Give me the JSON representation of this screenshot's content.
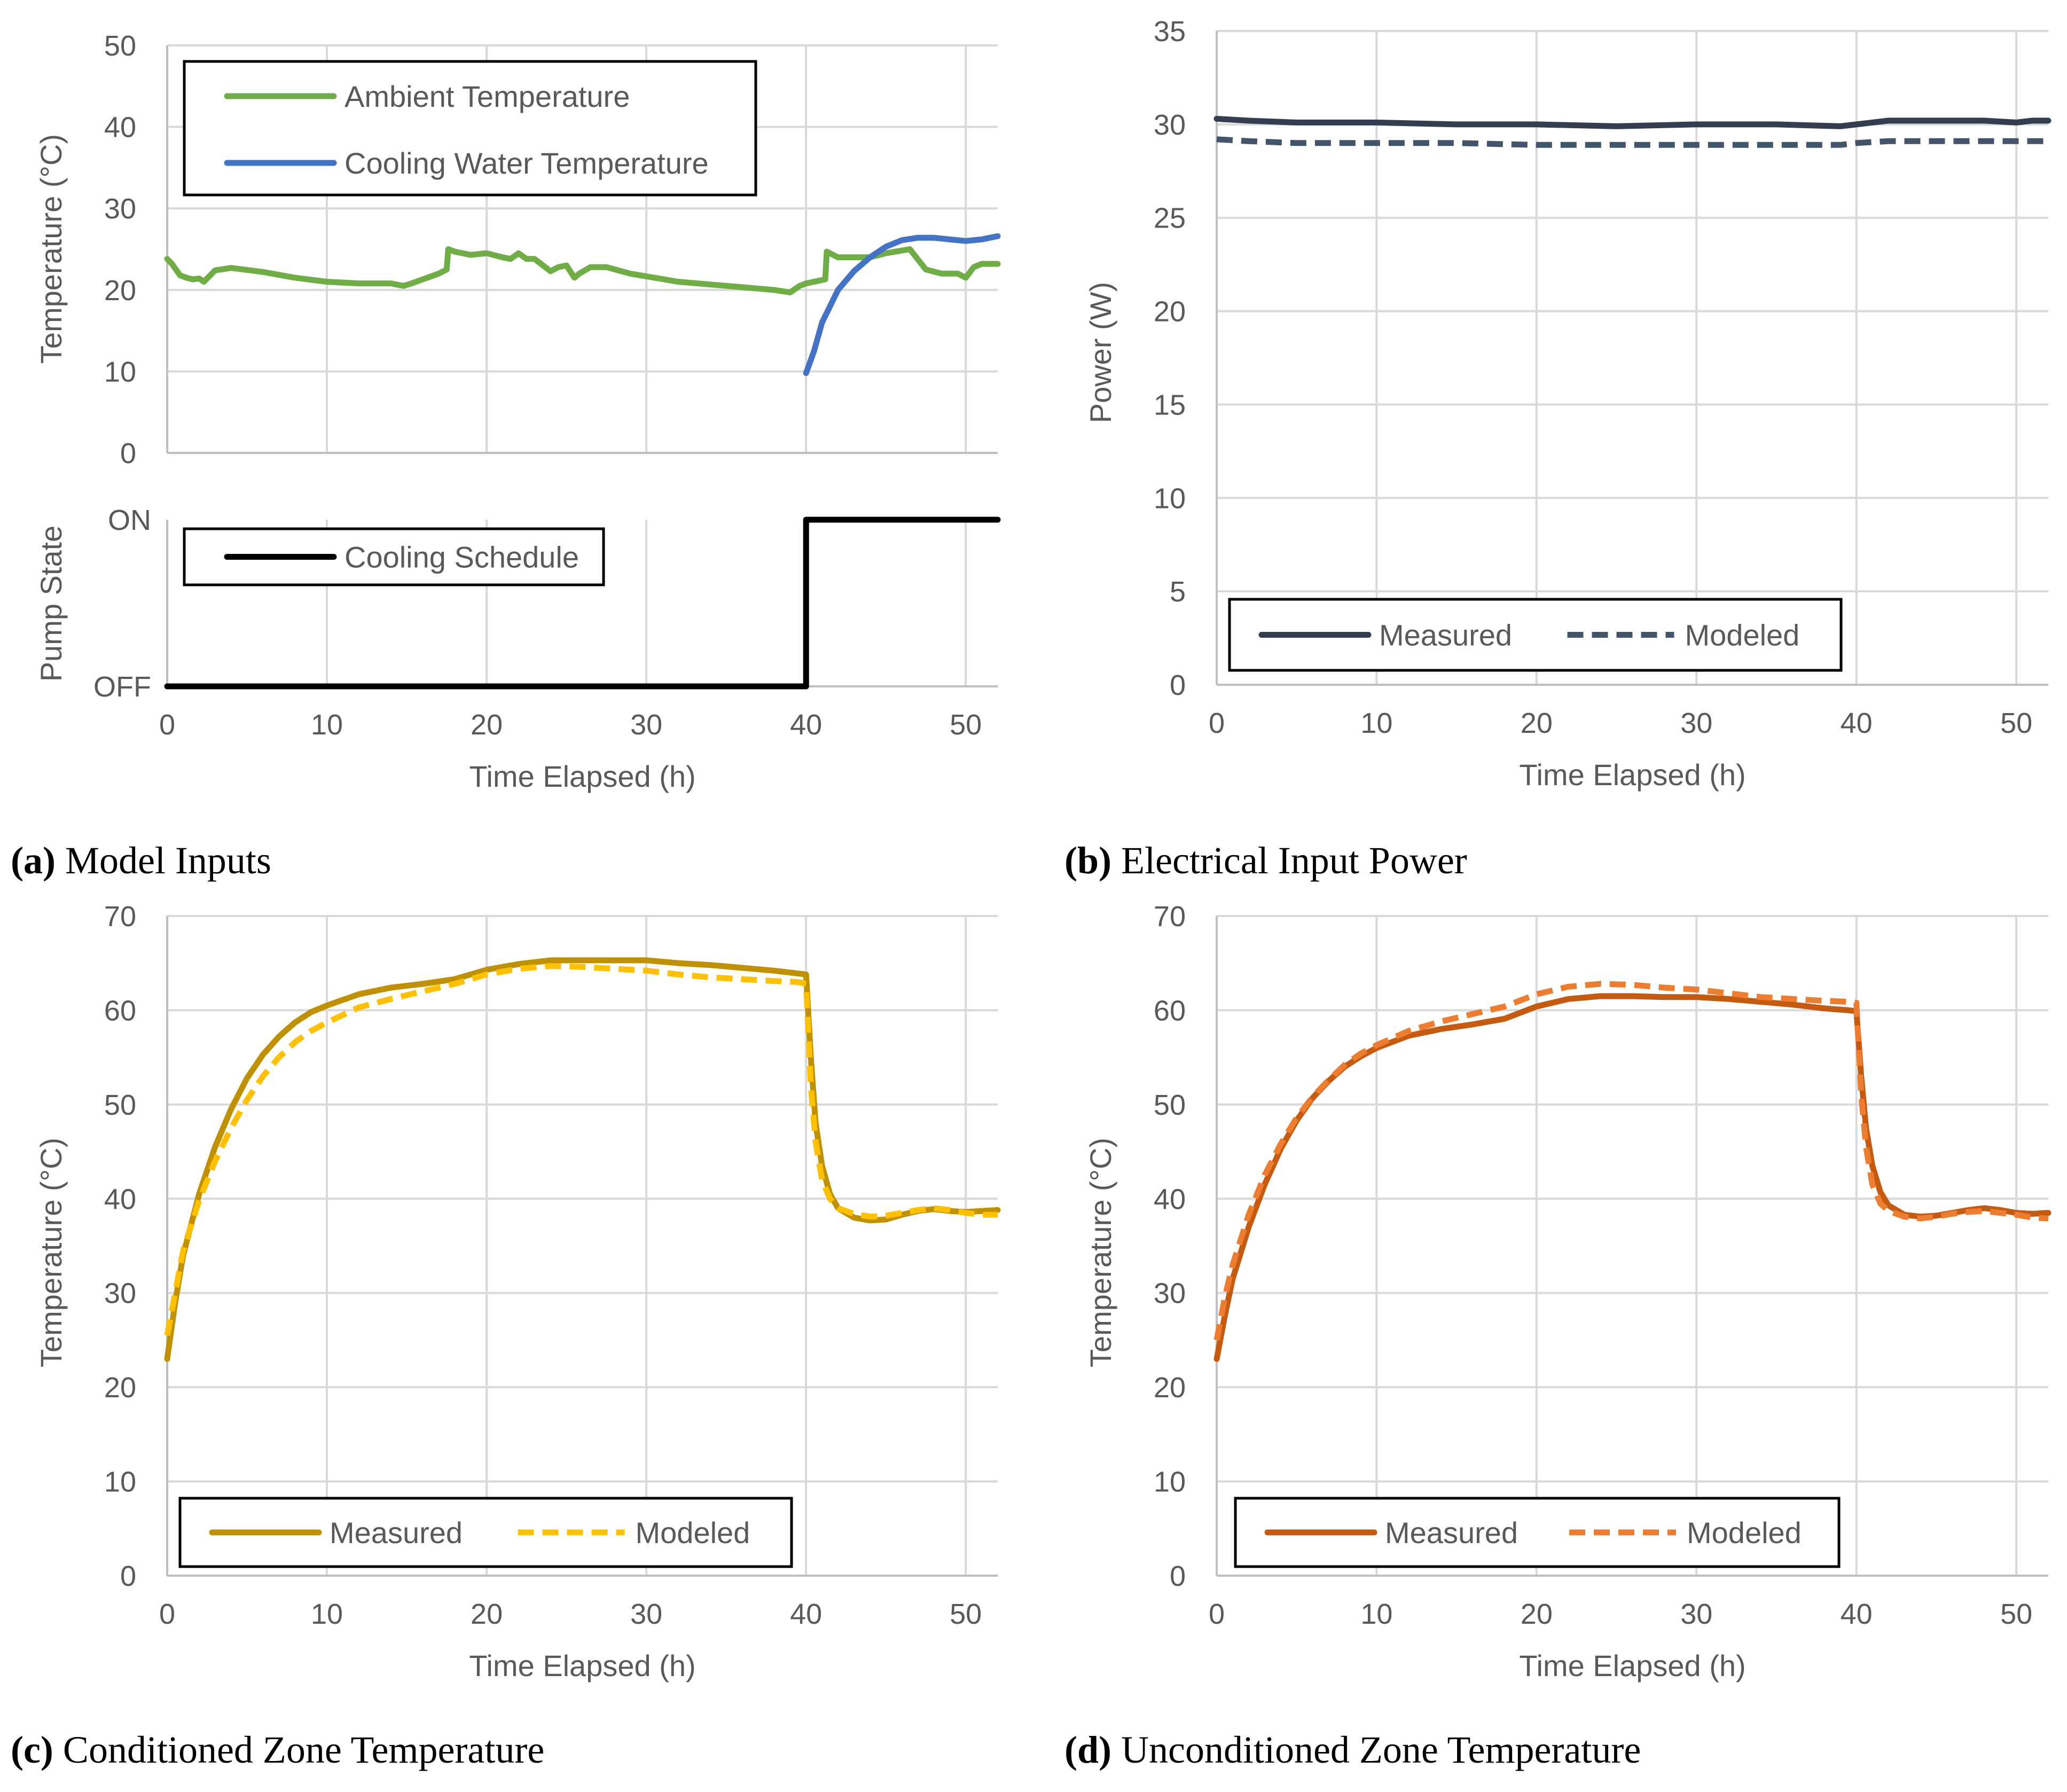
{
  "figure": {
    "captions": [
      {
        "letter": "(a)",
        "text": " Model Inputs"
      },
      {
        "letter": "(b)",
        "text": " Electrical Input Power"
      },
      {
        "letter": "(c)",
        "text": " Conditioned Zone Temperature"
      },
      {
        "letter": "(d)",
        "text": " Unconditioned Zone Temperature"
      }
    ]
  },
  "chart_data": [
    {
      "id": "a-top",
      "type": "line",
      "xlabel": "",
      "ylabel": "Temperature (°C)",
      "xlim": [
        0,
        52
      ],
      "ylim": [
        0,
        50
      ],
      "xticks": [
        0,
        10,
        20,
        30,
        40,
        50
      ],
      "yticks": [
        0,
        10,
        20,
        30,
        40,
        50
      ],
      "legend": "top-left",
      "series": [
        {
          "name": "Ambient Temperature",
          "color": "#70ad47",
          "dash": "solid",
          "x": [
            0,
            0.3,
            0.8,
            1.2,
            1.6,
            2.0,
            2.3,
            3.0,
            4,
            6,
            8,
            10,
            12,
            14,
            14.8,
            15.3,
            16,
            17,
            17.5,
            17.6,
            18,
            19,
            20,
            21,
            21.5,
            22,
            22.5,
            23,
            24,
            24.5,
            25,
            25.5,
            25.8,
            26.5,
            27.5,
            29,
            32,
            35,
            38,
            39,
            39.6,
            40,
            40.5,
            41.2,
            41.3,
            42,
            44,
            45,
            46.5,
            47.5,
            48.5,
            49.5,
            50,
            50.5,
            51,
            52
          ],
          "y": [
            23.8,
            23.2,
            21.8,
            21.5,
            21.3,
            21.4,
            21.0,
            22.4,
            22.7,
            22.2,
            21.5,
            21.0,
            20.8,
            20.8,
            20.5,
            20.8,
            21.3,
            22.0,
            22.5,
            25.0,
            24.7,
            24.3,
            24.5,
            24.0,
            23.8,
            24.5,
            23.8,
            23.8,
            22.3,
            22.8,
            23.0,
            21.5,
            22.0,
            22.8,
            22.8,
            22.0,
            21.0,
            20.5,
            20.0,
            19.7,
            20.5,
            20.8,
            21.0,
            21.3,
            24.7,
            24.0,
            24.0,
            24.5,
            25.0,
            22.5,
            22.0,
            22.0,
            21.5,
            22.8,
            23.2,
            23.2
          ]
        },
        {
          "name": "Cooling Water Temperature",
          "color": "#4472c4",
          "dash": "solid",
          "x": [
            40,
            40.5,
            41,
            42,
            43,
            44,
            45,
            46,
            47,
            48,
            49,
            50,
            51,
            52
          ],
          "y": [
            9.8,
            12.5,
            16.0,
            20.0,
            22.3,
            24.0,
            25.3,
            26.1,
            26.4,
            26.4,
            26.2,
            26.0,
            26.2,
            26.6
          ]
        }
      ]
    },
    {
      "id": "a-bottom",
      "type": "line",
      "xlabel": "Time Elapsed (h)",
      "ylabel": "Pump State",
      "xlim": [
        0,
        52
      ],
      "ylim": [
        0,
        1
      ],
      "xticks": [
        0,
        10,
        20,
        30,
        40,
        50
      ],
      "ytick_labels": [
        "OFF",
        "ON"
      ],
      "legend": "top-left",
      "series": [
        {
          "name": "Cooling Schedule",
          "color": "#000000",
          "dash": "solid",
          "x": [
            0,
            40,
            40,
            52
          ],
          "y": [
            0,
            0,
            1,
            1
          ]
        }
      ]
    },
    {
      "id": "b",
      "type": "line",
      "xlabel": "Time Elapsed (h)",
      "ylabel": "Power (W)",
      "xlim": [
        0,
        52
      ],
      "ylim": [
        0,
        35
      ],
      "xticks": [
        0,
        10,
        20,
        30,
        40,
        50
      ],
      "yticks": [
        0,
        5,
        10,
        15,
        20,
        25,
        30,
        35
      ],
      "legend": "bottom-left",
      "series": [
        {
          "name": "Measured",
          "color": "#333f50",
          "dash": "solid",
          "x": [
            0,
            2,
            5,
            10,
            15,
            20,
            25,
            30,
            35,
            39,
            40,
            42,
            45,
            48,
            50,
            51,
            52
          ],
          "y": [
            30.3,
            30.2,
            30.1,
            30.1,
            30.0,
            30.0,
            29.9,
            30.0,
            30.0,
            29.9,
            30.0,
            30.2,
            30.2,
            30.2,
            30.1,
            30.2,
            30.2
          ]
        },
        {
          "name": "Modeled",
          "color": "#44546a",
          "dash": "dashed",
          "x": [
            0,
            2,
            5,
            10,
            15,
            20,
            25,
            30,
            35,
            39,
            40,
            42,
            45,
            48,
            50,
            52
          ],
          "y": [
            29.2,
            29.1,
            29.0,
            29.0,
            29.0,
            28.9,
            28.9,
            28.9,
            28.9,
            28.9,
            29.0,
            29.1,
            29.1,
            29.1,
            29.1,
            29.1
          ]
        }
      ]
    },
    {
      "id": "c",
      "type": "line",
      "xlabel": "Time Elapsed (h)",
      "ylabel": "Temperature (°C)",
      "xlim": [
        0,
        52
      ],
      "ylim": [
        0,
        70
      ],
      "xticks": [
        0,
        10,
        20,
        30,
        40,
        50
      ],
      "yticks": [
        0,
        10,
        20,
        30,
        40,
        50,
        60,
        70
      ],
      "legend": "bottom-left",
      "series": [
        {
          "name": "Measured",
          "color": "#bf9000",
          "dash": "solid",
          "x": [
            0,
            0.5,
            1,
            2,
            3,
            4,
            5,
            6,
            7,
            8,
            9,
            10,
            12,
            14,
            16,
            18,
            20,
            22,
            24,
            26,
            28,
            30,
            32,
            34,
            36,
            38,
            39.5,
            40,
            40.3,
            40.6,
            41,
            41.5,
            42,
            43,
            44,
            45,
            46,
            47,
            48,
            49,
            50,
            51,
            52
          ],
          "y": [
            23.0,
            29.0,
            34.0,
            40.5,
            45.5,
            49.5,
            52.8,
            55.3,
            57.2,
            58.7,
            59.8,
            60.5,
            61.7,
            62.4,
            62.8,
            63.3,
            64.3,
            64.9,
            65.3,
            65.3,
            65.3,
            65.3,
            65.0,
            64.8,
            64.5,
            64.2,
            63.9,
            63.8,
            55.0,
            48.0,
            43.5,
            40.5,
            39.0,
            38.0,
            37.7,
            37.8,
            38.3,
            38.7,
            38.9,
            38.7,
            38.6,
            38.7,
            38.8
          ]
        },
        {
          "name": "Modeled",
          "color": "#ffc000",
          "dash": "dashed",
          "x": [
            0,
            0.5,
            1,
            2,
            3,
            4,
            5,
            6,
            7,
            8,
            9,
            10,
            12,
            14,
            16,
            18,
            20,
            22,
            24,
            26,
            28,
            30,
            32,
            34,
            36,
            38,
            39.5,
            40,
            40.3,
            40.6,
            41,
            41.5,
            42,
            43,
            44,
            45,
            46,
            47,
            48,
            49,
            50,
            51,
            52
          ],
          "y": [
            25.5,
            30.0,
            34.5,
            39.8,
            44.0,
            47.5,
            50.5,
            53.0,
            55.0,
            56.6,
            57.8,
            58.7,
            60.3,
            61.2,
            62.0,
            62.8,
            63.8,
            64.4,
            64.7,
            64.6,
            64.4,
            64.2,
            63.8,
            63.5,
            63.3,
            63.1,
            63.0,
            62.8,
            52.0,
            46.0,
            42.0,
            40.0,
            39.0,
            38.4,
            38.1,
            38.2,
            38.5,
            38.8,
            39.0,
            38.8,
            38.5,
            38.3,
            38.3
          ]
        }
      ]
    },
    {
      "id": "d",
      "type": "line",
      "xlabel": "Time Elapsed (h)",
      "ylabel": "Temperature (°C)",
      "xlim": [
        0,
        52
      ],
      "ylim": [
        0,
        70
      ],
      "xticks": [
        0,
        10,
        20,
        30,
        40,
        50
      ],
      "yticks": [
        0,
        10,
        20,
        30,
        40,
        50,
        60,
        70
      ],
      "legend": "bottom-left",
      "series": [
        {
          "name": "Measured",
          "color": "#c55a11",
          "dash": "solid",
          "x": [
            0,
            0.5,
            1,
            2,
            3,
            4,
            5,
            6,
            7,
            8,
            9,
            10,
            12,
            14,
            16,
            18,
            20,
            22,
            24,
            26,
            28,
            30,
            32,
            34,
            36,
            38,
            39.5,
            40,
            40.3,
            40.6,
            41,
            41.5,
            42,
            43,
            44,
            45,
            46,
            47,
            48,
            49,
            50,
            51,
            52
          ],
          "y": [
            23.0,
            27.5,
            31.5,
            37.0,
            41.5,
            45.3,
            48.3,
            50.7,
            52.5,
            54.0,
            55.1,
            56.0,
            57.3,
            58.0,
            58.5,
            59.1,
            60.4,
            61.2,
            61.5,
            61.5,
            61.4,
            61.4,
            61.2,
            60.9,
            60.6,
            60.2,
            60.0,
            59.9,
            53.0,
            47.5,
            43.5,
            40.7,
            39.3,
            38.3,
            38.1,
            38.2,
            38.5,
            38.8,
            39.0,
            38.8,
            38.5,
            38.4,
            38.5
          ]
        },
        {
          "name": "Modeled",
          "color": "#ed7d31",
          "dash": "dashed",
          "x": [
            0,
            0.5,
            1,
            2,
            3,
            4,
            5,
            6,
            7,
            8,
            9,
            10,
            12,
            14,
            16,
            18,
            20,
            22,
            24,
            26,
            28,
            30,
            32,
            34,
            36,
            38,
            39.5,
            40,
            40.3,
            40.6,
            41,
            41.5,
            42,
            43,
            44,
            45,
            46,
            47,
            48,
            49,
            50,
            51,
            52
          ],
          "y": [
            25.0,
            29.5,
            33.0,
            38.3,
            42.5,
            45.8,
            48.6,
            50.8,
            52.6,
            54.2,
            55.4,
            56.3,
            57.8,
            58.8,
            59.6,
            60.4,
            61.7,
            62.5,
            62.8,
            62.7,
            62.4,
            62.2,
            61.8,
            61.4,
            61.2,
            61.0,
            60.9,
            60.8,
            51.0,
            45.5,
            41.5,
            39.5,
            38.7,
            38.1,
            37.9,
            38.1,
            38.4,
            38.6,
            38.7,
            38.5,
            38.3,
            38.0,
            37.9
          ]
        }
      ]
    }
  ]
}
